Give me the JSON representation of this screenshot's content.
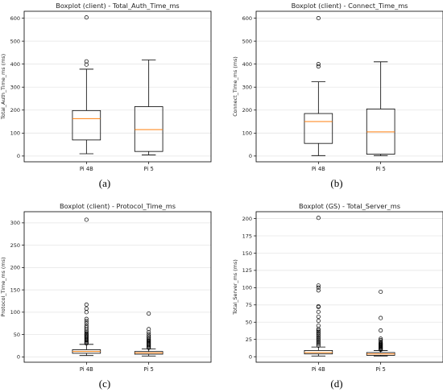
{
  "captions": [
    "(a)",
    "(b)",
    "(c)",
    "(d)"
  ],
  "chart_data": [
    {
      "type": "boxplot",
      "title": "Boxplot (client) - Total_Auth_Time_ms",
      "ylabel": "Total_Auth_Time_ms (ms)",
      "xlabel": "",
      "ylim": [
        -25,
        630
      ],
      "yticks": [
        0,
        100,
        200,
        300,
        400,
        500,
        600
      ],
      "grid": "horizontal",
      "categories": [
        "Pi 4B",
        "Pi 5"
      ],
      "boxes": [
        {
          "name": "Pi 4B",
          "whisker_low": 10,
          "q1": 70,
          "median": 163,
          "q3": 198,
          "whisker_high": 378,
          "outliers": [
            398,
            412,
            603
          ]
        },
        {
          "name": "Pi 5",
          "whisker_low": 5,
          "q1": 20,
          "median": 115,
          "q3": 215,
          "whisker_high": 418,
          "outliers": []
        }
      ]
    },
    {
      "type": "boxplot",
      "title": "Boxplot (client) - Connect_Time_ms",
      "ylabel": "Connect_Time_ms (ms)",
      "xlabel": "",
      "ylim": [
        -25,
        630
      ],
      "yticks": [
        0,
        100,
        200,
        300,
        400,
        500,
        600
      ],
      "grid": "horizontal",
      "categories": [
        "Pi 4B",
        "Pi 5"
      ],
      "boxes": [
        {
          "name": "Pi 4B",
          "whisker_low": 2,
          "q1": 55,
          "median": 150,
          "q3": 185,
          "whisker_high": 323,
          "outliers": [
            390,
            400,
            600
          ]
        },
        {
          "name": "Pi 5",
          "whisker_low": 2,
          "q1": 8,
          "median": 105,
          "q3": 205,
          "whisker_high": 410,
          "outliers": []
        }
      ]
    },
    {
      "type": "boxplot",
      "title": "Boxplot (client) - Protocol_Time_ms",
      "ylabel": "Protocol_Time_ms (ms)",
      "xlabel": "",
      "ylim": [
        -12,
        325
      ],
      "yticks": [
        0,
        50,
        100,
        150,
        200,
        250,
        300
      ],
      "grid": "horizontal",
      "categories": [
        "Pi 4B",
        "Pi 5"
      ],
      "boxes": [
        {
          "name": "Pi 4B",
          "whisker_low": 3,
          "q1": 8,
          "median": 12,
          "q3": 16,
          "whisker_high": 28,
          "outliers": [
            30,
            32,
            34,
            36,
            38,
            40,
            42,
            44,
            46,
            48,
            50,
            52,
            55,
            58,
            62,
            66,
            70,
            75,
            80,
            85,
            100,
            108,
            117,
            307
          ]
        },
        {
          "name": "Pi 5",
          "whisker_low": 2,
          "q1": 6,
          "median": 9,
          "q3": 12,
          "whisker_high": 18,
          "outliers": [
            20,
            22,
            24,
            26,
            28,
            30,
            32,
            34,
            36,
            38,
            40,
            43,
            46,
            50,
            55,
            62,
            97
          ]
        }
      ]
    },
    {
      "type": "boxplot",
      "title": "Boxplot (GS) - Total_Server_ms",
      "ylabel": "Total_Server_ms (ms)",
      "xlabel": "",
      "ylim": [
        -8,
        210
      ],
      "yticks": [
        0,
        25,
        50,
        75,
        100,
        125,
        150,
        175,
        200
      ],
      "grid": "horizontal",
      "categories": [
        "Pi 4B",
        "Pi 5"
      ],
      "boxes": [
        {
          "name": "Pi 4B",
          "whisker_low": 1,
          "q1": 4,
          "median": 6,
          "q3": 9,
          "whisker_high": 14,
          "outliers": [
            16,
            18,
            20,
            22,
            24,
            26,
            28,
            30,
            32,
            34,
            36,
            38,
            40,
            45,
            52,
            58,
            65,
            72,
            73,
            96,
            100,
            103,
            201
          ]
        },
        {
          "name": "Pi 5",
          "whisker_low": 1,
          "q1": 2,
          "median": 4,
          "q3": 6,
          "whisker_high": 9,
          "outliers": [
            10,
            11,
            12,
            13,
            14,
            15,
            16,
            17,
            18,
            19,
            20,
            22,
            24,
            26,
            38,
            56,
            94
          ]
        }
      ]
    }
  ],
  "colors": {
    "median": "#ff7f0e",
    "box": "#000000",
    "grid": "#e6e6e6",
    "tick_text": "#222222"
  }
}
